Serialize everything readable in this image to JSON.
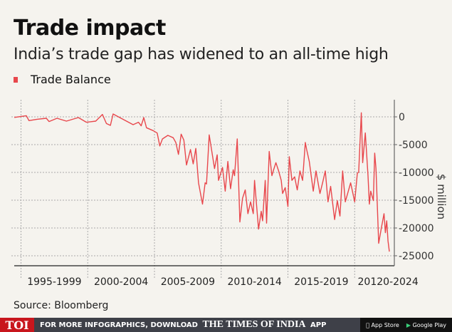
{
  "header": {
    "title": "Trade impact",
    "subtitle": "India’s trade gap has widened to an all-time high"
  },
  "source": "Source: Bloomberg",
  "footer": {
    "logo": "TOI",
    "promo_text": "FOR MORE INFOGRAPHICS, DOWNLOAD",
    "brand": "THE TIMES OF INDIA",
    "app_label": "APP",
    "app_store": "App Store",
    "google_play": "Google Play"
  },
  "chart_data": {
    "type": "line",
    "title": "Trade impact",
    "subtitle": "India’s trade gap has widened to an all-time high",
    "ylabel": "$ million",
    "ylim": [
      -27000,
      3000
    ],
    "yticks": [
      0,
      -5000,
      -10000,
      -15000,
      -20000,
      -25000
    ],
    "ytick_labels": [
      "0",
      "-5000",
      "-10000",
      "-15000",
      "-20000",
      "-25000"
    ],
    "xaxis_categories": [
      "1995-1999",
      "2000-2004",
      "2005-2009",
      "2010-2014",
      "2015-2019",
      "20120-2024"
    ],
    "grid": true,
    "legend_position": "top-left",
    "series": [
      {
        "name": "Trade Balance",
        "color": "#e8474c",
        "points": [
          [
            1994.5,
            -100
          ],
          [
            1995.4,
            200
          ],
          [
            1995.6,
            -680
          ],
          [
            1996.2,
            -430
          ],
          [
            1996.9,
            -260
          ],
          [
            1997.1,
            -850
          ],
          [
            1997.7,
            -260
          ],
          [
            1998.4,
            -770
          ],
          [
            1999.3,
            -130
          ],
          [
            1999.9,
            -980
          ],
          [
            2000.6,
            -770
          ],
          [
            2001.1,
            430
          ],
          [
            2001.4,
            -1200
          ],
          [
            2001.7,
            -1540
          ],
          [
            2001.9,
            510
          ],
          [
            2002.5,
            -260
          ],
          [
            2003.4,
            -1410
          ],
          [
            2003.8,
            -980
          ],
          [
            2004.0,
            -1620
          ],
          [
            2004.2,
            -130
          ],
          [
            2004.4,
            -1960
          ],
          [
            2004.9,
            -2480
          ],
          [
            2005.2,
            -2910
          ],
          [
            2005.4,
            -5250
          ],
          [
            2005.6,
            -3970
          ],
          [
            2006.0,
            -3330
          ],
          [
            2006.4,
            -3760
          ],
          [
            2006.6,
            -4610
          ],
          [
            2006.8,
            -6750
          ],
          [
            2007.0,
            -3120
          ],
          [
            2007.2,
            -4190
          ],
          [
            2007.4,
            -8670
          ],
          [
            2007.7,
            -5890
          ],
          [
            2007.9,
            -8460
          ],
          [
            2008.1,
            -5680
          ],
          [
            2008.3,
            -11870
          ],
          [
            2008.6,
            -15710
          ],
          [
            2008.8,
            -11870
          ],
          [
            2008.9,
            -12080
          ],
          [
            2009.1,
            -3250
          ],
          [
            2009.5,
            -9310
          ],
          [
            2009.7,
            -6830
          ],
          [
            2009.8,
            -11440
          ],
          [
            2010.1,
            -9100
          ],
          [
            2010.3,
            -13370
          ],
          [
            2010.5,
            -8030
          ],
          [
            2010.7,
            -12940
          ],
          [
            2010.9,
            -9520
          ],
          [
            2011.0,
            -10590
          ],
          [
            2011.2,
            -3970
          ],
          [
            2011.4,
            -18920
          ],
          [
            2011.6,
            -14650
          ],
          [
            2011.8,
            -13150
          ],
          [
            2012.0,
            -17420
          ],
          [
            2012.2,
            -15290
          ],
          [
            2012.4,
            -17420
          ],
          [
            2012.5,
            -11440
          ],
          [
            2012.8,
            -20200
          ],
          [
            2013.0,
            -17000
          ],
          [
            2013.1,
            -18700
          ],
          [
            2013.3,
            -11440
          ],
          [
            2013.4,
            -19130
          ],
          [
            2013.6,
            -6230
          ],
          [
            2013.8,
            -10590
          ],
          [
            2013.9,
            -9730
          ],
          [
            2014.1,
            -8240
          ],
          [
            2014.3,
            -9730
          ],
          [
            2014.5,
            -11440
          ],
          [
            2014.6,
            -13790
          ],
          [
            2014.8,
            -12730
          ],
          [
            2015.0,
            -16140
          ],
          [
            2015.1,
            -7170
          ],
          [
            2015.3,
            -11440
          ],
          [
            2015.5,
            -10800
          ],
          [
            2015.7,
            -13150
          ],
          [
            2015.9,
            -9730
          ],
          [
            2016.1,
            -11440
          ],
          [
            2016.3,
            -4610
          ],
          [
            2016.4,
            -5890
          ],
          [
            2016.6,
            -8030
          ],
          [
            2016.9,
            -13370
          ],
          [
            2017.1,
            -9730
          ],
          [
            2017.4,
            -13790
          ],
          [
            2017.6,
            -11870
          ],
          [
            2017.8,
            -9730
          ],
          [
            2018.0,
            -15290
          ],
          [
            2018.2,
            -12510
          ],
          [
            2018.5,
            -18490
          ],
          [
            2018.7,
            -15080
          ],
          [
            2018.9,
            -17850
          ],
          [
            2019.1,
            -9730
          ],
          [
            2019.3,
            -15290
          ],
          [
            2019.7,
            -11870
          ],
          [
            2020.0,
            -15290
          ],
          [
            2020.2,
            -10160
          ],
          [
            2020.3,
            -9950
          ],
          [
            2020.5,
            730
          ],
          [
            2020.6,
            -8240
          ],
          [
            2020.8,
            -2900
          ],
          [
            2021.0,
            -10590
          ],
          [
            2021.1,
            -15710
          ],
          [
            2021.2,
            -13370
          ],
          [
            2021.4,
            -15080
          ],
          [
            2021.5,
            -6530
          ],
          [
            2021.6,
            -9310
          ],
          [
            2021.8,
            -22760
          ],
          [
            2022.0,
            -19980
          ],
          [
            2022.2,
            -17420
          ],
          [
            2022.3,
            -20840
          ],
          [
            2022.4,
            -18700
          ],
          [
            2022.5,
            -22330
          ],
          [
            2022.6,
            -24250
          ]
        ]
      }
    ]
  }
}
